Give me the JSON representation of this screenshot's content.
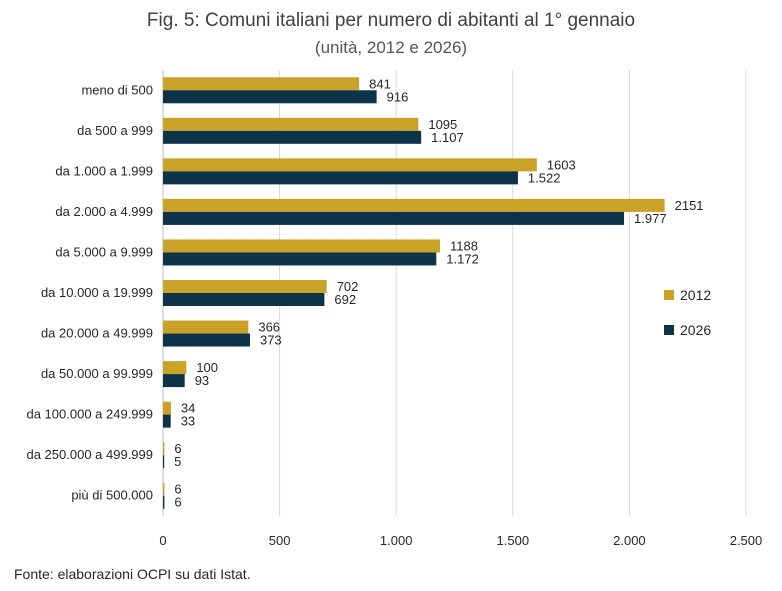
{
  "title": "Fig. 5: Comuni italiani per numero di abitanti al 1° gennaio",
  "subtitle": "(unità, 2012 e 2026)",
  "source": "Fonte: elaborazioni OCPI su dati Istat.",
  "colors": {
    "s2012": "#C9A227",
    "s2026": "#0D3349",
    "grid": "#D9D9D9",
    "axis": "#BFBFBF"
  },
  "chart_data": {
    "type": "bar",
    "orientation": "horizontal",
    "categories": [
      "meno di 500",
      "da 500 a 999",
      "da 1.000 a 1.999",
      "da 2.000 a 4.999",
      "da 5.000 a 9.999",
      "da 10.000 a 19.999",
      "da 20.000 a 49.999",
      "da 50.000 a 99.999",
      "da 100.000 a 249.999",
      "da 250.000 a 499.999",
      "più di 500.000"
    ],
    "series": [
      {
        "name": "2012",
        "values": [
          841,
          1095,
          1603,
          2151,
          1188,
          702,
          366,
          100,
          34,
          6,
          6
        ],
        "labels": [
          "841",
          "1095",
          "1603",
          "2151",
          "1188",
          "702",
          "366",
          "100",
          "34",
          "6",
          "6"
        ]
      },
      {
        "name": "2026",
        "values": [
          916,
          1107,
          1522,
          1977,
          1172,
          692,
          373,
          93,
          33,
          5,
          6
        ],
        "labels": [
          "916",
          "1.107",
          "1.522",
          "1.977",
          "1.172",
          "692",
          "373",
          "93",
          "33",
          "5",
          "6"
        ]
      }
    ],
    "xlim": [
      0,
      2500
    ],
    "xticks": [
      0,
      500,
      1000,
      1500,
      2000,
      2500
    ],
    "xtick_labels": [
      "0",
      "500",
      "1.000",
      "1.500",
      "2.000",
      "2.500"
    ],
    "grid": true,
    "legend": "right"
  }
}
